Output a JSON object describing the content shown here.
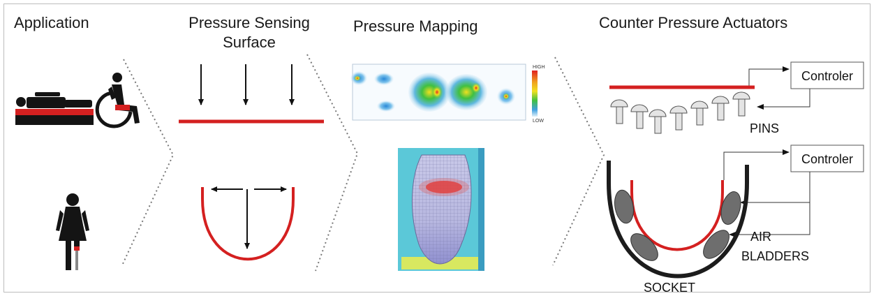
{
  "headers": {
    "application": "Application",
    "sensing_line1": "Pressure Sensing",
    "sensing_line2": "Surface",
    "mapping": "Pressure Mapping",
    "actuators": "Counter Pressure Actuators"
  },
  "labels": {
    "controller_top": "Controler",
    "controller_bottom": "Controler",
    "pins": "PINS",
    "air": "AIR",
    "bladders": "BLADDERS",
    "socket": "SOCKET",
    "scale_high": "HIGH",
    "scale_low": "LOW"
  },
  "colors": {
    "accent_red": "#d42020",
    "line_black": "#111111",
    "divider_gray": "#777777",
    "bladder_gray": "#6e6e6e",
    "pin_gray": "#e4e4e4",
    "socket_bg": "#5bc8d8"
  },
  "icons": {
    "lying_person": "person-lying-on-mattress-icon",
    "wheelchair": "wheelchair-user-icon",
    "amputee": "amputee-woman-icon"
  }
}
